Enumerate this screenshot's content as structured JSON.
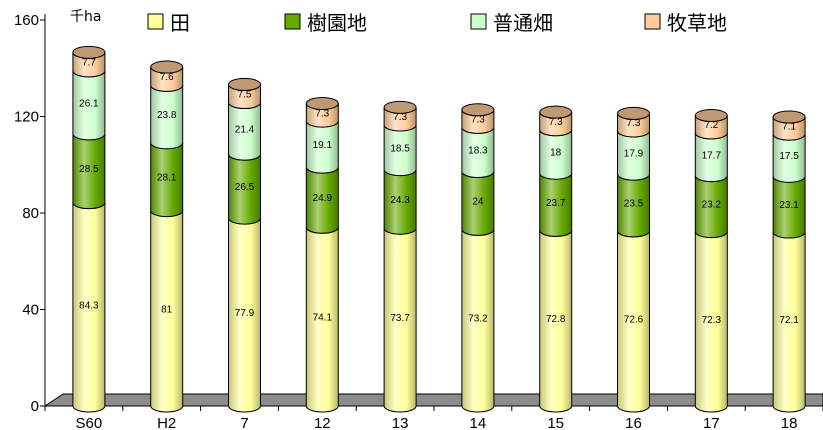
{
  "chart_data": {
    "type": "bar",
    "stacked": true,
    "title": "",
    "unit": "千ha",
    "xlabel": "",
    "ylabel": "",
    "ylim": [
      0,
      160
    ],
    "yticks": [
      0,
      40,
      80,
      120,
      160
    ],
    "grid": false,
    "legend_position": "top",
    "categories": [
      "S60",
      "H2",
      "7",
      "12",
      "13",
      "14",
      "15",
      "16",
      "17",
      "18"
    ],
    "series": [
      {
        "name": "田",
        "color": "#FFFF99",
        "values": [
          84.3,
          81,
          77.9,
          74.1,
          73.7,
          73.2,
          72.8,
          72.6,
          72.3,
          72.1
        ]
      },
      {
        "name": "樹園地",
        "color": "#66AA00",
        "values": [
          28.5,
          28.1,
          26.5,
          24.9,
          24.3,
          24,
          23.7,
          23.5,
          23.2,
          23.1
        ]
      },
      {
        "name": "普通畑",
        "color": "#CCFFCC",
        "values": [
          26.1,
          23.8,
          21.4,
          19.1,
          18.5,
          18.3,
          18,
          17.9,
          17.7,
          17.5
        ]
      },
      {
        "name": "牧草地",
        "color": "#FFCC99",
        "values": [
          7.7,
          7.6,
          7.5,
          7.3,
          7.3,
          7.3,
          7.3,
          7.3,
          7.2,
          7.1
        ]
      }
    ]
  }
}
